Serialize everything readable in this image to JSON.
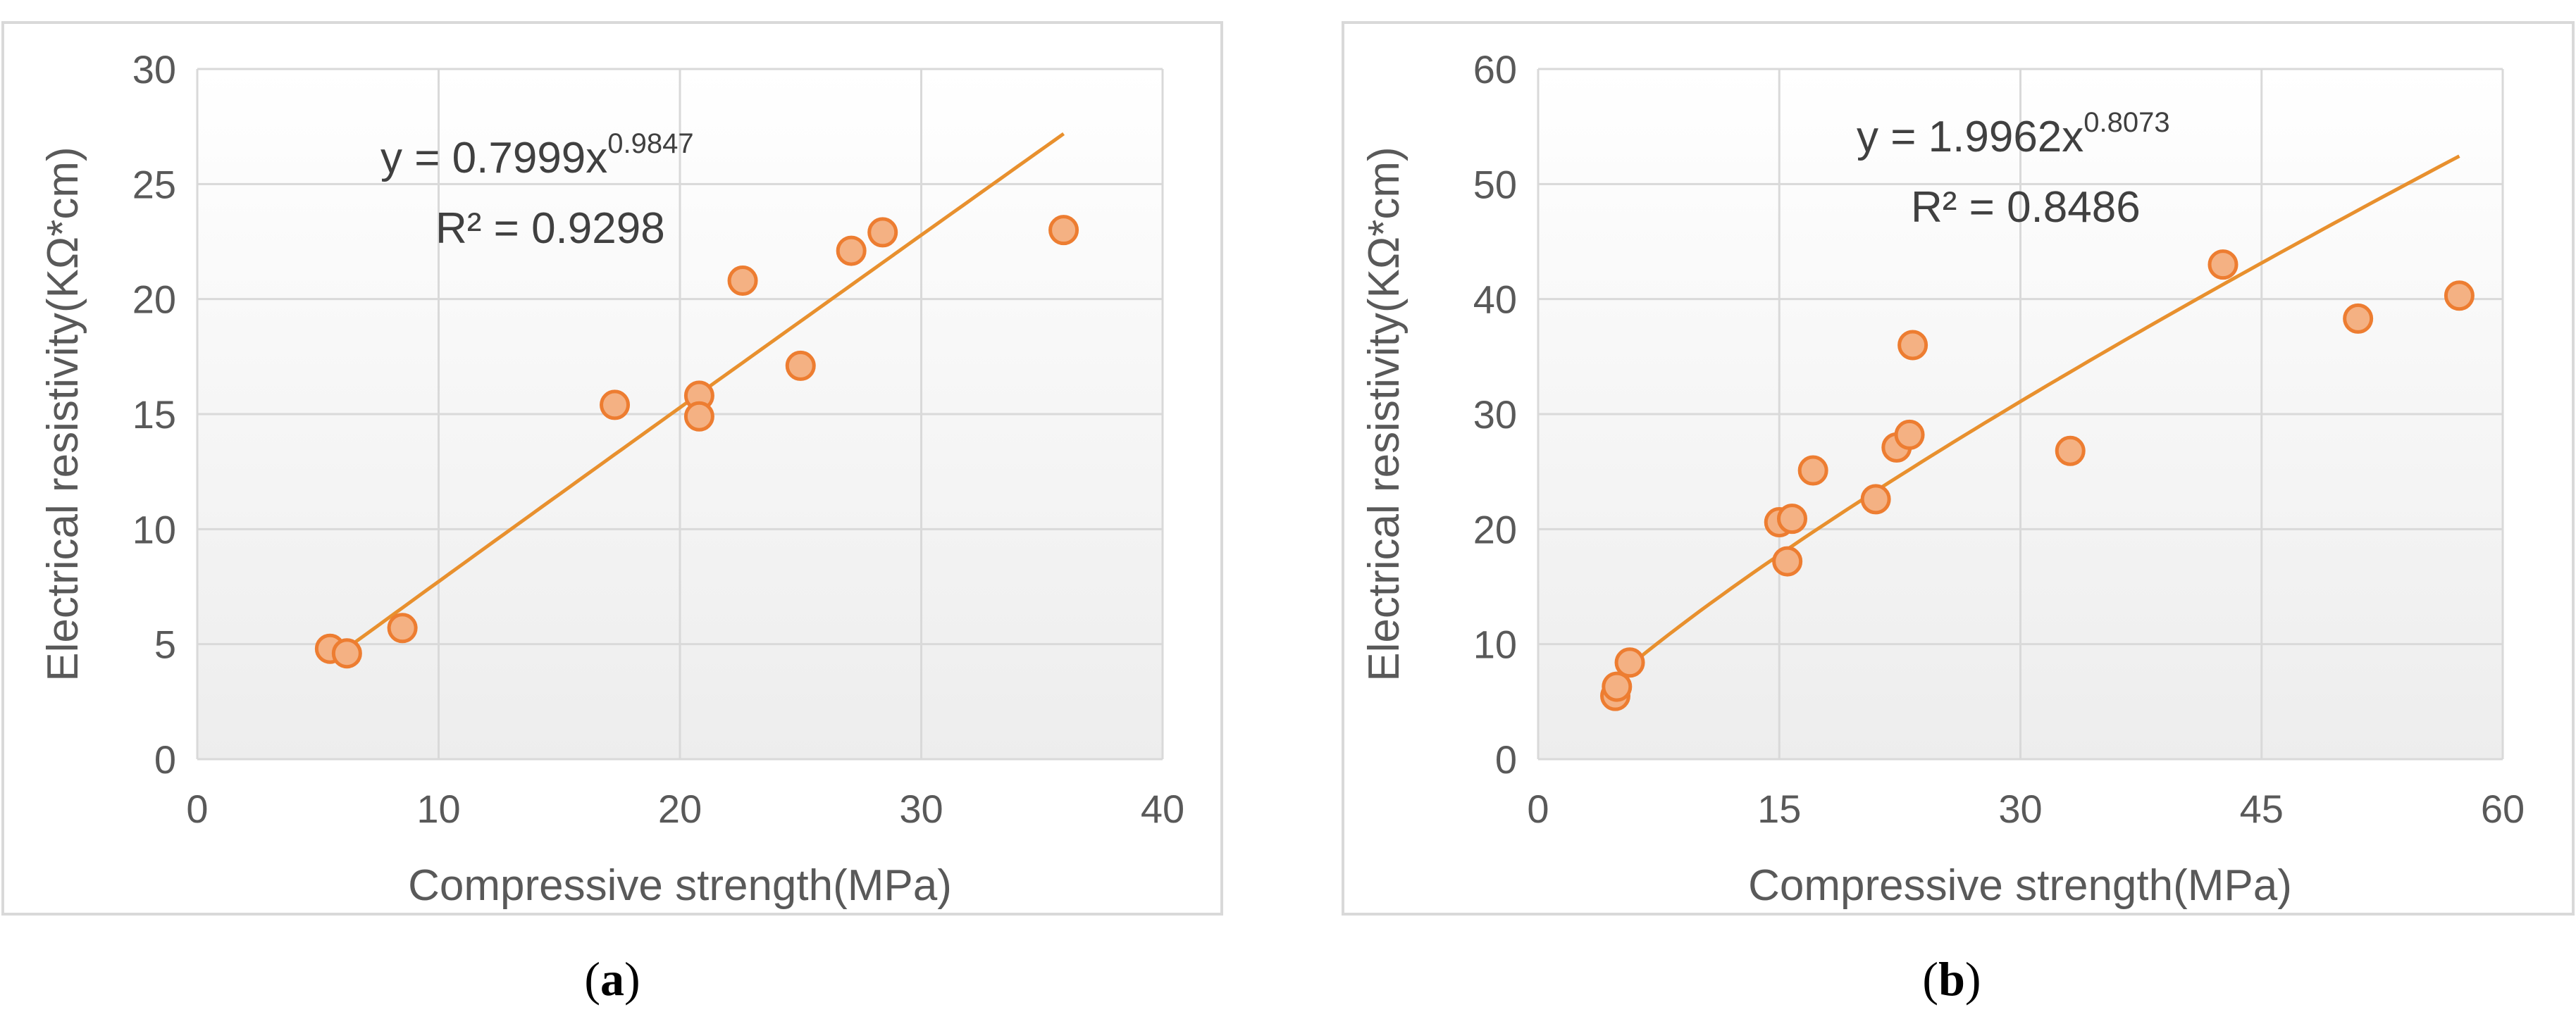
{
  "colors": {
    "marker_fill": "#F4B183",
    "marker_stroke": "#ED7D31",
    "trend": "#E8902E",
    "grid": "#D9D9D9",
    "frame": "#D9D9D9",
    "plot_bg_top": "#FFFFFF",
    "plot_bg_bottom": "#EDEDED"
  },
  "chart_data": [
    {
      "type": "scatter",
      "panel": "a",
      "caption": {
        "open": "(",
        "letter": "a",
        "close": ")"
      },
      "xlabel": "Compressive strength(MPa)",
      "ylabel": "Electrical resistivity(KΩ*cm)",
      "xlim": [
        0,
        40
      ],
      "ylim": [
        0,
        30
      ],
      "xticks": [
        0,
        10,
        20,
        30,
        40
      ],
      "yticks": [
        0,
        5,
        10,
        15,
        20,
        25,
        30
      ],
      "grid": true,
      "points": [
        {
          "x": 5.5,
          "y": 4.8
        },
        {
          "x": 6.2,
          "y": 4.6
        },
        {
          "x": 8.5,
          "y": 5.7
        },
        {
          "x": 17.3,
          "y": 15.4
        },
        {
          "x": 20.8,
          "y": 15.8
        },
        {
          "x": 20.8,
          "y": 14.9
        },
        {
          "x": 22.6,
          "y": 20.8
        },
        {
          "x": 25.0,
          "y": 17.1
        },
        {
          "x": 27.1,
          "y": 22.1
        },
        {
          "x": 28.4,
          "y": 22.9
        },
        {
          "x": 35.9,
          "y": 23.0
        }
      ],
      "trendline": {
        "type": "power",
        "a": 0.7999,
        "b": 0.9847,
        "x_range": [
          5.5,
          35.9
        ],
        "equation_base": "y = 0.7999x",
        "equation_exp": "0.9847",
        "r2_text": "R² = 0.9298"
      }
    },
    {
      "type": "scatter",
      "panel": "b",
      "caption": {
        "open": "(",
        "letter": "b",
        "close": ")"
      },
      "xlabel": "Compressive strength(MPa)",
      "ylabel": "Electrical resistivity(KΩ*cm)",
      "xlim": [
        0,
        60
      ],
      "ylim": [
        0,
        60
      ],
      "xticks": [
        0,
        15,
        30,
        45,
        60
      ],
      "yticks": [
        0,
        10,
        20,
        30,
        40,
        50,
        60
      ],
      "grid": true,
      "points": [
        {
          "x": 4.8,
          "y": 5.5
        },
        {
          "x": 4.9,
          "y": 6.3
        },
        {
          "x": 5.7,
          "y": 8.4
        },
        {
          "x": 15.0,
          "y": 20.6
        },
        {
          "x": 15.5,
          "y": 17.2
        },
        {
          "x": 15.8,
          "y": 20.9
        },
        {
          "x": 17.1,
          "y": 25.1
        },
        {
          "x": 21.0,
          "y": 22.6
        },
        {
          "x": 22.3,
          "y": 27.1
        },
        {
          "x": 23.1,
          "y": 28.2
        },
        {
          "x": 23.3,
          "y": 36.0
        },
        {
          "x": 33.1,
          "y": 26.8
        },
        {
          "x": 42.6,
          "y": 43.0
        },
        {
          "x": 51.0,
          "y": 38.3
        },
        {
          "x": 57.3,
          "y": 40.3
        }
      ],
      "trendline": {
        "type": "power",
        "a": 1.9962,
        "b": 0.8073,
        "x_range": [
          4.8,
          57.3
        ],
        "equation_base": "y = 1.9962x",
        "equation_exp": "0.8073",
        "r2_text": "R² = 0.8486"
      }
    }
  ]
}
